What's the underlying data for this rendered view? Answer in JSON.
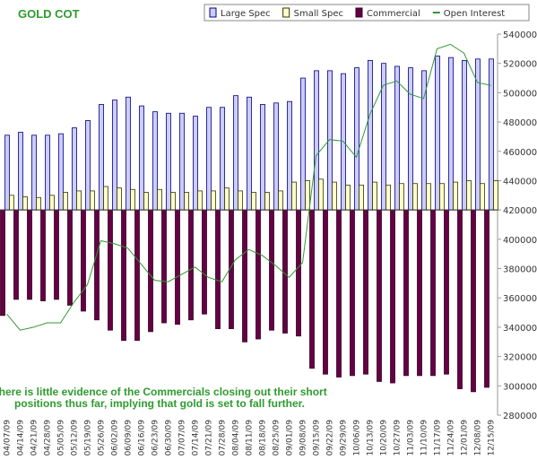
{
  "chart_data": {
    "type": "bar",
    "title": "GOLD COT",
    "annotation": [
      "There is little evidence of the Commercials closing out their short",
      "positions thus far, implying that gold is set to fall further."
    ],
    "categories": [
      "04/07/09",
      "04/14/09",
      "04/21/09",
      "04/28/09",
      "05/05/09",
      "05/12/09",
      "05/19/09",
      "05/26/09",
      "06/02/09",
      "06/09/09",
      "06/16/09",
      "06/23/09",
      "06/30/09",
      "07/07/09",
      "07/14/09",
      "07/21/09",
      "07/28/09",
      "08/04/09",
      "08/11/09",
      "08/18/09",
      "08/25/09",
      "09/01/09",
      "09/08/09",
      "09/15/09",
      "09/22/09",
      "09/29/09",
      "10/06/09",
      "10/13/09",
      "10/20/09",
      "10/27/09",
      "11/03/09",
      "11/10/09",
      "11/17/09",
      "11/24/09",
      "12/01/09",
      "12/08/09",
      "12/15/09"
    ],
    "ylim": [
      -140000,
      120000
    ],
    "y2lim": [
      280000,
      540000
    ],
    "y2ticks": [
      280000,
      300000,
      320000,
      340000,
      360000,
      380000,
      400000,
      420000,
      440000,
      460000,
      480000,
      500000,
      520000,
      540000
    ],
    "series": [
      {
        "name": "Large Spec",
        "color": "#ccccff",
        "values": [
          51000,
          53000,
          51000,
          51000,
          52000,
          56000,
          61000,
          72000,
          75000,
          77000,
          71000,
          67000,
          66000,
          66000,
          64000,
          70000,
          70000,
          78000,
          77000,
          72000,
          73000,
          74000,
          90000,
          95000,
          95000,
          93000,
          97000,
          102000,
          100000,
          98000,
          97000,
          95000,
          105000,
          104000,
          102000,
          103000,
          103000
        ]
      },
      {
        "name": "Small Spec",
        "color": "#ffffcc",
        "values": [
          10000,
          9000,
          8500,
          10000,
          12000,
          13000,
          13000,
          16000,
          15000,
          14000,
          12000,
          14000,
          12000,
          12000,
          13000,
          13000,
          15000,
          13000,
          12000,
          12000,
          13000,
          19000,
          20000,
          21000,
          19000,
          17000,
          17000,
          19000,
          17000,
          18000,
          18000,
          18000,
          18000,
          19000,
          20000,
          18000,
          20000
        ]
      },
      {
        "name": "Commercial",
        "color": "#660044",
        "values": [
          -72000,
          -61000,
          -61000,
          -62000,
          -61000,
          -65000,
          -69000,
          -75000,
          -82000,
          -89000,
          -89000,
          -83000,
          -77000,
          -78000,
          -75000,
          -71000,
          -81000,
          -81000,
          -90000,
          -88000,
          -82000,
          -84000,
          -86000,
          -108000,
          -112000,
          -114000,
          -113000,
          -112000,
          -117000,
          -118000,
          -113000,
          -113000,
          -113000,
          -112000,
          -122000,
          -124000,
          -121000
        ]
      },
      {
        "name": "Open Interest",
        "color": "#339933",
        "type": "line",
        "axis": "y2",
        "values": [
          349000,
          338000,
          340000,
          343000,
          343000,
          357000,
          369000,
          399000,
          397000,
          394000,
          383000,
          372000,
          371000,
          376000,
          381000,
          374000,
          371000,
          386000,
          393000,
          389000,
          382000,
          374000,
          384000,
          457000,
          468000,
          467000,
          456000,
          485000,
          505000,
          508000,
          499000,
          496000,
          530000,
          533000,
          527000,
          507000,
          505000
        ]
      }
    ]
  }
}
